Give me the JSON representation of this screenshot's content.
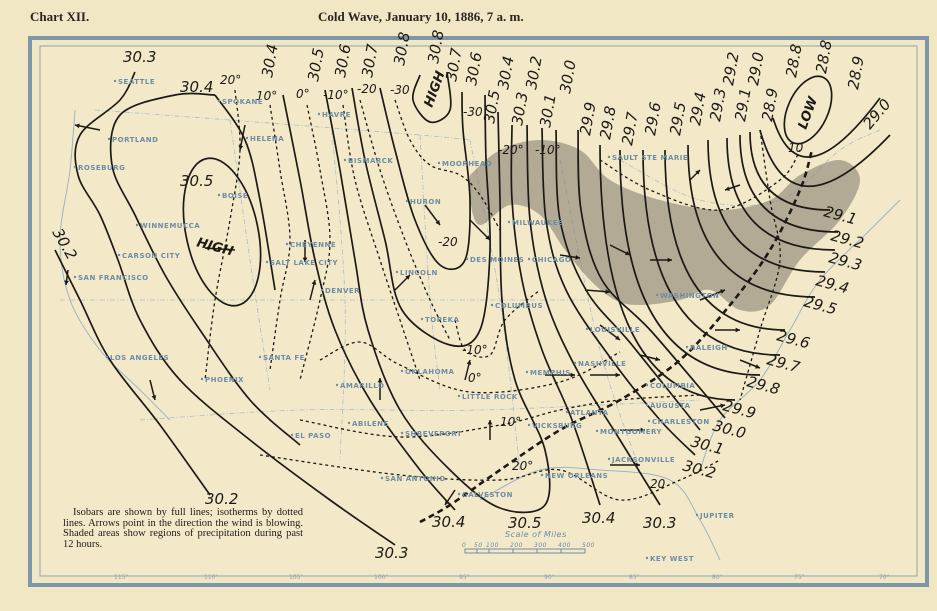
{
  "header": {
    "chart_label": "Chart XII.",
    "title": "Cold Wave, January 10, 1886, 7 a. m."
  },
  "legend_note": "Isobars are shown by full lines; isotherms by dotted lines. Arrows point in the direction the wind is blowing. Shaded areas show regions of precipitation during past 12 hours.",
  "pressure_centers": [
    {
      "label": "HIGH",
      "type": "high"
    },
    {
      "label": "HIGH",
      "type": "high"
    },
    {
      "label": "LOW",
      "type": "low"
    }
  ],
  "isobar_labels": [
    "30.3",
    "30.4",
    "30.5",
    "30.2",
    "30.4",
    "30.5",
    "30.6",
    "30.7",
    "30.8",
    "30.8",
    "30.7",
    "30.6",
    "30.5",
    "30.4",
    "30.3",
    "30.2",
    "30.1",
    "30.0",
    "29.9",
    "29.8",
    "29.7",
    "29.6",
    "29.5",
    "29.4",
    "29.3",
    "29.2",
    "29.1",
    "29.0",
    "28.9",
    "28.8",
    "28.8",
    "28.9",
    "29.0",
    "29.1",
    "29.2",
    "29.3",
    "29.4",
    "29.5",
    "29.6",
    "29.7",
    "29.8",
    "29.9",
    "30.0",
    "30.1",
    "30.2",
    "30.3",
    "30.4",
    "30.5",
    "30.4",
    "30.3",
    "30.2"
  ],
  "isotherm_labels": [
    "20°",
    "10°",
    "0°",
    "-10°",
    "-20",
    "-30",
    "-30",
    "-20°",
    "-10°",
    "-20",
    "10",
    "-10°",
    "0°",
    "10°",
    "20°",
    "20"
  ],
  "cities": [
    "Seattle",
    "Spokane",
    "Portland",
    "Helena",
    "Havre",
    "Roseburg",
    "Boise",
    "Winnemucca",
    "Carson City",
    "San Francisco",
    "Salt Lake City",
    "Cheyenne",
    "Denver",
    "Bismarck",
    "Moorhead",
    "Huron",
    "Lincoln",
    "Topeka",
    "Des Moines",
    "Chicago",
    "Milwaukee",
    "Sault Ste Marie",
    "Los Angeles",
    "Phoenix",
    "Santa Fe",
    "Amarillo",
    "Oklahoma",
    "El Paso",
    "Abilene",
    "Shreveport",
    "San Antonio",
    "Galveston",
    "Little Rock",
    "Memphis",
    "Vicksburg",
    "New Orleans",
    "Nashville",
    "Louisville",
    "Columbus",
    "Atlanta",
    "Montgomery",
    "Columbia",
    "Augusta",
    "Charleston",
    "Jacksonville",
    "Raleigh",
    "Washington",
    "Jupiter",
    "Key West"
  ],
  "longitude_labels": [
    "115°",
    "110°",
    "105°",
    "100°",
    "95°",
    "90°",
    "85°",
    "80°",
    "75°",
    "70°"
  ],
  "scale": {
    "title": "Scale of Miles",
    "ticks": [
      "0",
      "50",
      "100",
      "200",
      "300",
      "400",
      "500"
    ]
  },
  "colors": {
    "paper": "#f2e7c5",
    "ink": "#1d1a16",
    "base_map": "#6d8ca6",
    "precipitation": "#7d776b"
  }
}
